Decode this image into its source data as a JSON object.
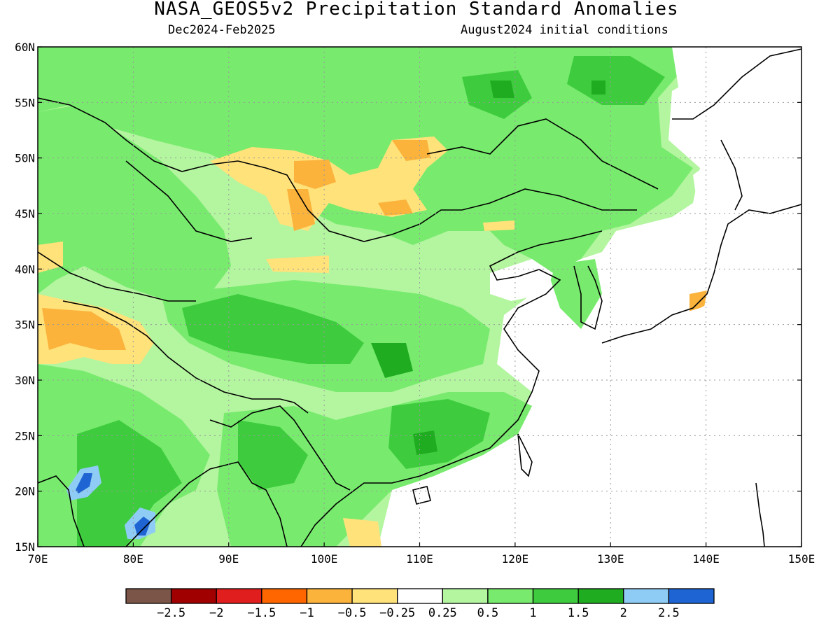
{
  "title": "NASA_GEOS5v2 Precipitation Standard Anomalies",
  "subtitle_left": "Dec2024-Feb2025",
  "subtitle_right": "August2024 initial conditions",
  "map": {
    "lon_range": [
      70,
      150
    ],
    "lat_range": [
      15,
      60
    ],
    "x_ticks": [
      "70E",
      "80E",
      "90E",
      "100E",
      "110E",
      "120E",
      "130E",
      "140E",
      "150E"
    ],
    "y_ticks": [
      "15N",
      "20N",
      "25N",
      "30N",
      "35N",
      "40N",
      "45N",
      "50N",
      "55N",
      "60N"
    ],
    "grid": "dotted"
  },
  "colorbar": {
    "colors": [
      "#7a5548",
      "#a00000",
      "#e01e1e",
      "#ff6600",
      "#fbb33c",
      "#ffe27a",
      "#ffffff",
      "#b4f5a0",
      "#78eb6e",
      "#3ecc3e",
      "#20ac20",
      "#8fccf5",
      "#1e64d2"
    ],
    "labels": [
      "-2.5",
      "-2",
      "-1.5",
      "-1",
      "-0.5",
      "-0.25",
      "0.25",
      "0.5",
      "1",
      "1.5",
      "2",
      "2.5"
    ]
  }
}
